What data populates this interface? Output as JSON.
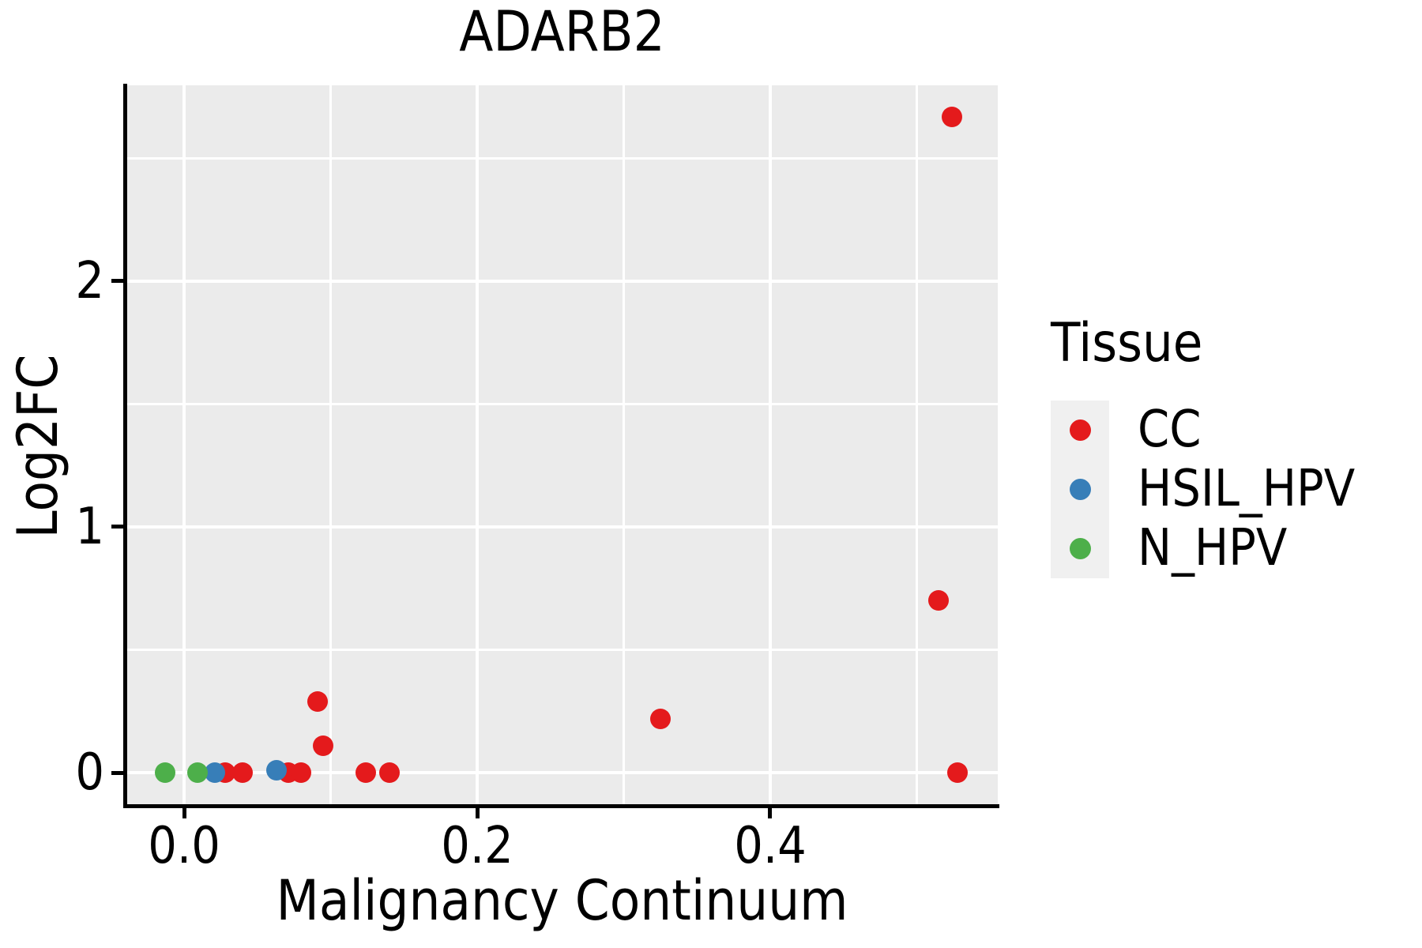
{
  "chart_data": {
    "type": "scatter",
    "title": "ADARB2",
    "xlabel": "Malignancy Continuum",
    "ylabel": "Log2FC",
    "xlim": [
      -0.0394,
      0.5553
    ],
    "ylim": [
      -0.135,
      2.797
    ],
    "x_ticks": {
      "values": [
        0.0,
        0.2,
        0.4
      ],
      "labels": [
        "0.0",
        "0.2",
        "0.4"
      ]
    },
    "y_ticks": {
      "values": [
        0,
        1,
        2
      ],
      "labels": [
        "0",
        "1",
        "2"
      ]
    },
    "x_minor_gridlines": [
      0.1,
      0.3,
      0.5
    ],
    "y_minor_gridlines": [
      0.5,
      1.5,
      2.5
    ],
    "grid": true,
    "panel_background": "#EBEBEB",
    "gridline_color": "#FFFFFF",
    "legend": {
      "title": "Tissue",
      "position": "right",
      "entries": [
        {
          "label": "CC",
          "color": "#E41A1C"
        },
        {
          "label": "HSIL_HPV",
          "color": "#377EB8"
        },
        {
          "label": "N_HPV",
          "color": "#4DAF4A"
        }
      ]
    },
    "series": [
      {
        "name": "CC",
        "color": "#E41A1C",
        "points": [
          [
            0.028,
            0.0
          ],
          [
            0.04,
            0.0
          ],
          [
            0.071,
            0.0
          ],
          [
            0.08,
            0.0
          ],
          [
            0.124,
            0.0
          ],
          [
            0.14,
            0.0
          ],
          [
            0.095,
            0.11
          ],
          [
            0.091,
            0.29
          ],
          [
            0.325,
            0.22
          ],
          [
            0.515,
            0.7
          ],
          [
            0.524,
            2.67
          ],
          [
            0.528,
            0.0
          ]
        ]
      },
      {
        "name": "HSIL_HPV",
        "color": "#377EB8",
        "points": [
          [
            0.021,
            0.0
          ],
          [
            0.063,
            0.01
          ]
        ]
      },
      {
        "name": "N_HPV",
        "color": "#4DAF4A",
        "points": [
          [
            -0.013,
            0.0
          ],
          [
            0.009,
            0.0
          ]
        ]
      }
    ]
  }
}
